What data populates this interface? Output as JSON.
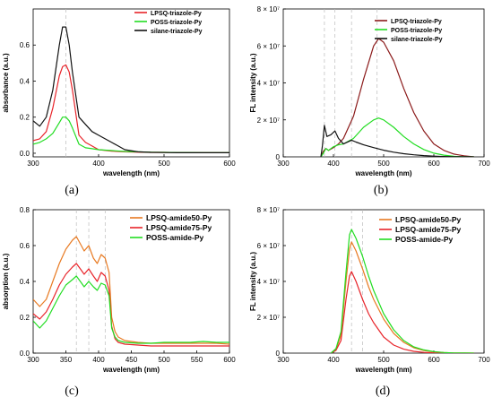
{
  "chart_data": [
    {
      "type": "line",
      "panel_label": "(a)",
      "xlabel": "wavelength (nm)",
      "ylabel": "absorbance (a.u.)",
      "xlim": [
        300,
        600
      ],
      "ylim": [
        -0.02,
        0.8
      ],
      "xticks": [
        "300",
        "400",
        "500",
        "600"
      ],
      "yticks": [
        "0.0",
        "0.2",
        "0.4",
        "0.6"
      ],
      "legend_position": "top-right",
      "reference_lines_x": [
        350
      ],
      "series": [
        {
          "name": "LPSQ-triazole-Py",
          "color": "#e8242a",
          "x": [
            300,
            310,
            320,
            330,
            340,
            345,
            350,
            355,
            360,
            370,
            380,
            390,
            400,
            420,
            440,
            460,
            480,
            500,
            520,
            540,
            560,
            580,
            600
          ],
          "y": [
            0.07,
            0.08,
            0.12,
            0.25,
            0.43,
            0.48,
            0.49,
            0.45,
            0.35,
            0.1,
            0.06,
            0.04,
            0.02,
            0.012,
            0.008,
            0.006,
            0.005,
            0.005,
            0.004,
            0.004,
            0.003,
            0.003,
            0.003
          ]
        },
        {
          "name": "POSS-triazole-Py",
          "color": "#22dd22",
          "x": [
            300,
            310,
            320,
            330,
            340,
            345,
            350,
            355,
            360,
            370,
            380,
            390,
            400,
            420,
            440,
            460,
            480,
            500,
            520,
            540,
            560,
            580,
            600
          ],
          "y": [
            0.05,
            0.06,
            0.08,
            0.11,
            0.17,
            0.2,
            0.2,
            0.18,
            0.14,
            0.05,
            0.03,
            0.025,
            0.02,
            0.015,
            0.01,
            0.008,
            0.006,
            0.005,
            0.004,
            0.004,
            0.003,
            0.003,
            0.003
          ]
        },
        {
          "name": "silane-triazole-Py",
          "color": "#111111",
          "x": [
            300,
            310,
            320,
            330,
            340,
            345,
            350,
            355,
            360,
            370,
            380,
            390,
            400,
            410,
            420,
            430,
            440,
            460,
            480,
            500,
            520,
            540,
            560,
            580,
            600
          ],
          "y": [
            0.18,
            0.15,
            0.2,
            0.35,
            0.6,
            0.7,
            0.7,
            0.6,
            0.45,
            0.2,
            0.16,
            0.12,
            0.1,
            0.08,
            0.06,
            0.04,
            0.02,
            0.008,
            0.005,
            0.004,
            0.003,
            0.003,
            0.003,
            0.003,
            0.003
          ]
        }
      ]
    },
    {
      "type": "line",
      "panel_label": "(b)",
      "xlabel": "wavelength (nm)",
      "ylabel": "FL intensity (a.u.)",
      "xlim": [
        300,
        700
      ],
      "ylim": [
        0,
        80000000
      ],
      "xticks": [
        "300",
        "400",
        "500",
        "600",
        "700"
      ],
      "yticks": [
        "0",
        "2 × 10⁷",
        "4 × 10⁷",
        "6 × 10⁷",
        "8 × 10⁷"
      ],
      "legend_position": "top-right",
      "reference_lines_x": [
        382,
        403,
        436,
        487
      ],
      "series": [
        {
          "name": "LPSQ-triazole-Py",
          "color": "#8b1a1a",
          "x": [
            375,
            380,
            385,
            390,
            400,
            410,
            420,
            440,
            460,
            480,
            490,
            500,
            520,
            540,
            560,
            580,
            600,
            620,
            640,
            660,
            680
          ],
          "y": [
            0,
            3000000,
            4500000,
            3500000,
            5000000,
            7000000,
            10000000,
            22000000,
            42000000,
            60000000,
            64000000,
            62000000,
            52000000,
            37000000,
            24000000,
            14000000,
            7000000,
            3500000,
            1500000,
            600000,
            0
          ]
        },
        {
          "name": "POSS-triazole-Py",
          "color": "#22dd22",
          "x": [
            375,
            380,
            385,
            390,
            400,
            410,
            420,
            440,
            460,
            480,
            490,
            500,
            520,
            540,
            560,
            580,
            600,
            620,
            640,
            660,
            680
          ],
          "y": [
            0,
            2000000,
            4500000,
            3500000,
            5500000,
            6500000,
            7000000,
            10000000,
            16000000,
            20000000,
            21000000,
            20000000,
            16000000,
            11000000,
            7000000,
            4000000,
            2000000,
            900000,
            300000,
            100000,
            0
          ]
        },
        {
          "name": "silane-triazole-Py",
          "color": "#111111",
          "x": [
            375,
            378,
            382,
            387,
            395,
            403,
            410,
            420,
            436,
            445,
            460,
            480,
            500,
            520,
            540,
            560,
            580,
            600,
            620,
            640,
            660,
            680
          ],
          "y": [
            0,
            6000000,
            17000000,
            11000000,
            12000000,
            14000000,
            10000000,
            7000000,
            9000000,
            8000000,
            6500000,
            5000000,
            3600000,
            2500000,
            1700000,
            1100000,
            700000,
            400000,
            200000,
            100000,
            50000,
            0
          ]
        }
      ]
    },
    {
      "type": "line",
      "panel_label": "(c)",
      "xlabel": "wavelength (nm)",
      "ylabel": "absorption (a.u.)",
      "xlim": [
        300,
        600
      ],
      "ylim": [
        0,
        0.8
      ],
      "xticks": [
        "300",
        "350",
        "400",
        "450",
        "500",
        "550",
        "600"
      ],
      "yticks": [
        "0.0",
        "0.2",
        "0.4",
        "0.6",
        "0.8"
      ],
      "legend_position": "top-right",
      "reference_lines_x": [
        366,
        385,
        410
      ],
      "series": [
        {
          "name": "LPSQ-amide50-Py",
          "color": "#e87a22",
          "x": [
            300,
            310,
            320,
            330,
            340,
            350,
            360,
            366,
            372,
            378,
            385,
            392,
            398,
            404,
            410,
            416,
            420,
            425,
            430,
            440,
            460,
            480,
            500,
            520,
            540,
            560,
            580,
            600
          ],
          "y": [
            0.3,
            0.26,
            0.3,
            0.4,
            0.5,
            0.58,
            0.63,
            0.65,
            0.61,
            0.57,
            0.6,
            0.53,
            0.5,
            0.55,
            0.53,
            0.45,
            0.2,
            0.12,
            0.09,
            0.07,
            0.06,
            0.055,
            0.055,
            0.055,
            0.055,
            0.055,
            0.055,
            0.05
          ]
        },
        {
          "name": "LPSQ-amide75-Py",
          "color": "#e8242a",
          "x": [
            300,
            310,
            320,
            330,
            340,
            350,
            360,
            366,
            372,
            378,
            385,
            392,
            398,
            404,
            410,
            416,
            420,
            425,
            430,
            440,
            460,
            480,
            500,
            520,
            540,
            560,
            580,
            600
          ],
          "y": [
            0.22,
            0.19,
            0.23,
            0.3,
            0.38,
            0.44,
            0.48,
            0.5,
            0.47,
            0.44,
            0.47,
            0.43,
            0.4,
            0.45,
            0.43,
            0.35,
            0.15,
            0.08,
            0.06,
            0.05,
            0.045,
            0.04,
            0.04,
            0.04,
            0.04,
            0.04,
            0.04,
            0.04
          ]
        },
        {
          "name": "POSS-amide-Py",
          "color": "#22dd22",
          "x": [
            300,
            310,
            320,
            330,
            340,
            350,
            360,
            366,
            372,
            378,
            385,
            392,
            398,
            404,
            410,
            416,
            420,
            425,
            430,
            440,
            460,
            480,
            500,
            520,
            540,
            560,
            580,
            600
          ],
          "y": [
            0.18,
            0.14,
            0.18,
            0.25,
            0.32,
            0.38,
            0.41,
            0.43,
            0.4,
            0.37,
            0.4,
            0.37,
            0.35,
            0.39,
            0.38,
            0.32,
            0.14,
            0.09,
            0.07,
            0.06,
            0.055,
            0.055,
            0.06,
            0.06,
            0.06,
            0.065,
            0.06,
            0.06
          ]
        }
      ]
    },
    {
      "type": "line",
      "panel_label": "(d)",
      "xlabel": "wavelength (nm)",
      "ylabel": "FL intensity (a.u.)",
      "xlim": [
        300,
        700
      ],
      "ylim": [
        0,
        80000000
      ],
      "xticks": [
        "300",
        "400",
        "500",
        "600",
        "700"
      ],
      "yticks": [
        "0",
        "2 × 10⁷",
        "4 × 10⁷",
        "6 × 10⁷",
        "8 × 10⁷"
      ],
      "legend_position": "top-right",
      "reference_lines_x": [
        436,
        458
      ],
      "series": [
        {
          "name": "LPSQ-amide50-Py",
          "color": "#e87a22",
          "x": [
            395,
            405,
            415,
            425,
            432,
            436,
            445,
            458,
            470,
            480,
            500,
            520,
            540,
            560,
            580,
            600,
            620,
            640,
            660,
            680
          ],
          "y": [
            0,
            2000000,
            10000000,
            40000000,
            58000000,
            62000000,
            57000000,
            47000000,
            37000000,
            30000000,
            19000000,
            11000000,
            6000000,
            3000000,
            1500000,
            700000,
            300000,
            100000,
            30000,
            0
          ]
        },
        {
          "name": "LPSQ-amide75-Py",
          "color": "#e8242a",
          "x": [
            395,
            405,
            415,
            425,
            432,
            436,
            445,
            458,
            470,
            480,
            500,
            520,
            540,
            560,
            580,
            600,
            620,
            640,
            660,
            680
          ],
          "y": [
            0,
            1500000,
            7000000,
            30000000,
            43000000,
            45500000,
            40000000,
            30000000,
            22000000,
            17000000,
            9000000,
            4500000,
            2200000,
            1000000,
            400000,
            150000,
            50000,
            20000,
            5000,
            0
          ]
        },
        {
          "name": "POSS-amide-Py",
          "color": "#22dd22",
          "x": [
            395,
            405,
            415,
            425,
            432,
            436,
            445,
            458,
            470,
            480,
            500,
            520,
            540,
            560,
            580,
            600,
            620,
            640,
            660,
            680
          ],
          "y": [
            0,
            2500000,
            12000000,
            45000000,
            66000000,
            69000000,
            64000000,
            54000000,
            43000000,
            35000000,
            22000000,
            13000000,
            7000000,
            3500000,
            1800000,
            800000,
            350000,
            120000,
            30000,
            0
          ]
        }
      ]
    }
  ]
}
